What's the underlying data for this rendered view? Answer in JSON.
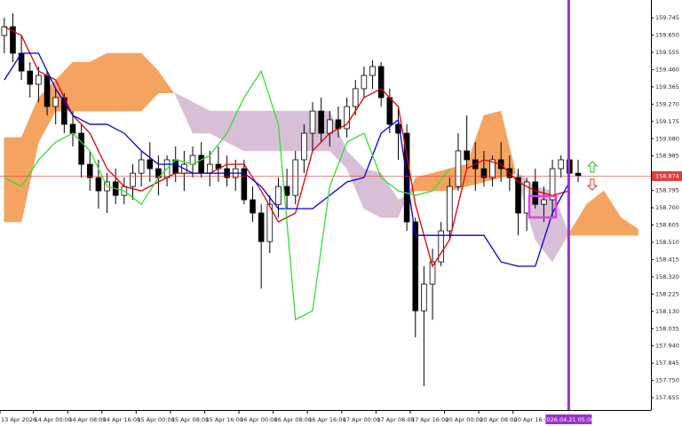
{
  "chart_data": {
    "type": "candlestick",
    "up_color": "#ffffff",
    "down_color": "#000000",
    "open": [
      159.648,
      159.696,
      159.55,
      159.452,
      159.379,
      159.428,
      159.257,
      159.306,
      159.159,
      159.11,
      158.939,
      158.866,
      158.793,
      158.842,
      158.768,
      158.817,
      158.89,
      158.964,
      158.915,
      158.866,
      158.964,
      158.89,
      158.939,
      158.988,
      158.89,
      158.939,
      158.915,
      158.866,
      158.915,
      158.744,
      158.671,
      158.514,
      158.719,
      158.817,
      158.768,
      158.964,
      159.11,
      159.232,
      159.11,
      159.184,
      159.135,
      159.257,
      159.355,
      159.428,
      159.477,
      159.306,
      159.159,
      159.11,
      158.622,
      158.133,
      158.28,
      158.402,
      158.573,
      158.817,
      159.013,
      158.964,
      158.915,
      158.866,
      158.964,
      158.915,
      158.866,
      158.671,
      158.842,
      158.719,
      158.744,
      158.915,
      158.964,
      158.89
    ],
    "high": [
      159.745,
      159.77,
      159.648,
      159.501,
      159.477,
      159.452,
      159.355,
      159.33,
      159.232,
      159.159,
      159.013,
      158.964,
      158.89,
      158.915,
      158.866,
      158.939,
      159.013,
      159.061,
      158.988,
      158.988,
      159.037,
      159.013,
      159.037,
      159.061,
      159.013,
      159.037,
      158.988,
      158.964,
      158.964,
      158.817,
      158.719,
      158.768,
      158.866,
      158.915,
      159.013,
      159.159,
      159.281,
      159.306,
      159.232,
      159.257,
      159.306,
      159.403,
      159.477,
      159.511,
      159.501,
      159.355,
      159.257,
      159.159,
      158.646,
      158.378,
      158.475,
      158.622,
      158.866,
      159.11,
      159.208,
      159.061,
      159.013,
      158.988,
      159.061,
      158.988,
      158.915,
      158.866,
      158.915,
      158.817,
      158.964,
      158.988,
      158.988,
      158.964
    ],
    "low": [
      159.55,
      159.501,
      159.403,
      159.306,
      159.281,
      159.208,
      159.159,
      159.11,
      159.037,
      158.866,
      158.793,
      158.695,
      158.671,
      158.719,
      158.719,
      158.744,
      158.817,
      158.842,
      158.768,
      158.817,
      158.842,
      158.793,
      158.866,
      158.866,
      158.817,
      158.842,
      158.817,
      158.793,
      158.719,
      158.622,
      158.255,
      158.451,
      158.646,
      158.695,
      158.719,
      158.89,
      159.013,
      159.061,
      159.037,
      159.086,
      159.086,
      159.208,
      159.306,
      159.355,
      159.257,
      159.11,
      158.964,
      158.573,
      157.987,
      157.718,
      158.084,
      158.378,
      158.524,
      158.793,
      158.915,
      158.793,
      158.817,
      158.817,
      158.842,
      158.793,
      158.548,
      158.573,
      158.695,
      158.622,
      158.646,
      158.866,
      158.866,
      158.842
    ],
    "close": [
      159.696,
      159.55,
      159.452,
      159.379,
      159.428,
      159.257,
      159.306,
      159.159,
      159.11,
      158.939,
      158.866,
      158.793,
      158.842,
      158.768,
      158.817,
      158.89,
      158.964,
      158.915,
      158.866,
      158.964,
      158.89,
      158.939,
      158.988,
      158.89,
      158.939,
      158.915,
      158.866,
      158.915,
      158.744,
      158.671,
      158.514,
      158.719,
      158.817,
      158.768,
      158.964,
      159.11,
      159.232,
      159.11,
      159.184,
      159.135,
      159.257,
      159.355,
      159.428,
      159.477,
      159.306,
      159.159,
      159.11,
      158.622,
      158.133,
      158.28,
      158.402,
      158.573,
      158.817,
      159.013,
      158.964,
      158.915,
      158.866,
      158.964,
      158.915,
      158.866,
      158.671,
      158.842,
      158.719,
      158.744,
      158.915,
      158.964,
      158.89,
      158.876
    ],
    "lines": [
      {
        "color": "#e00000",
        "x": [
          0,
          2,
          4,
          6,
          8,
          10,
          12,
          14,
          16,
          18,
          20,
          22,
          24,
          26,
          28,
          30,
          32,
          34,
          36,
          38,
          40,
          42,
          44,
          46,
          48,
          50,
          52,
          54,
          56,
          58,
          60,
          62,
          64,
          66
        ],
        "values": [
          159.696,
          159.648,
          159.452,
          159.403,
          159.208,
          159.11,
          158.915,
          158.817,
          158.793,
          158.842,
          158.89,
          158.89,
          158.89,
          158.939,
          158.939,
          158.793,
          158.622,
          158.671,
          159.013,
          159.11,
          159.159,
          159.306,
          159.355,
          159.257,
          158.719,
          158.378,
          158.524,
          158.915,
          158.964,
          158.939,
          158.842,
          158.793,
          158.768,
          158.793
        ]
      },
      {
        "color": "#0000dd",
        "x": [
          0,
          2,
          4,
          6,
          8,
          10,
          12,
          14,
          16,
          18,
          20,
          22,
          24,
          26,
          28,
          30,
          32,
          34,
          36,
          38,
          40,
          42,
          44,
          46,
          48,
          50,
          52,
          54,
          56,
          58,
          60,
          62,
          64,
          66
        ],
        "values": [
          159.403,
          159.55,
          159.55,
          159.355,
          159.208,
          159.159,
          159.159,
          159.11,
          159.013,
          158.939,
          158.939,
          158.89,
          158.89,
          158.89,
          158.89,
          158.817,
          158.695,
          158.695,
          158.695,
          158.768,
          158.842,
          158.866,
          159.11,
          159.184,
          158.548,
          158.548,
          158.548,
          158.548,
          158.548,
          158.402,
          158.378,
          158.378,
          158.671,
          158.842
        ]
      },
      {
        "color": "#33dd33",
        "x": [
          0,
          2,
          4,
          6,
          8,
          10,
          12,
          14,
          16,
          18,
          20,
          22,
          24,
          26,
          28,
          30,
          32,
          34,
          36,
          38,
          40,
          42,
          44,
          46,
          48,
          50,
          52
        ],
        "values": [
          158.866,
          158.817,
          158.964,
          159.061,
          159.11,
          159.013,
          158.817,
          158.793,
          158.719,
          158.866,
          158.964,
          158.939,
          158.988,
          159.11,
          159.306,
          159.452,
          159.159,
          158.084,
          158.133,
          158.817,
          159.061,
          159.11,
          158.866,
          158.793,
          158.768,
          158.793,
          158.915
        ]
      }
    ],
    "cloud": {
      "up_color": "#f4a460",
      "down_color": "#d8bfd8",
      "x": [
        0,
        2,
        4,
        6,
        8,
        10,
        12,
        14,
        16,
        18,
        20,
        22,
        24,
        26,
        28,
        30,
        32,
        34,
        36,
        38,
        40,
        42,
        44,
        46,
        48,
        50,
        52,
        54,
        56,
        58,
        60,
        62,
        64,
        66,
        68,
        70,
        72,
        74
      ],
      "a": [
        159.086,
        159.086,
        159.306,
        159.403,
        159.501,
        159.501,
        159.55,
        159.55,
        159.55,
        159.452,
        159.32,
        159.11,
        159.11,
        159.061,
        159.013,
        159.013,
        159.013,
        159.013,
        159.013,
        159.013,
        158.915,
        158.695,
        158.646,
        158.646,
        158.866,
        158.89,
        158.915,
        158.939,
        159.208,
        159.232,
        158.842,
        158.524,
        158.402,
        158.563,
        158.719,
        158.793,
        158.646,
        158.583
      ],
      "b": [
        158.622,
        158.622,
        159.061,
        159.232,
        159.232,
        159.232,
        159.232,
        159.232,
        159.232,
        159.33,
        159.33,
        159.281,
        159.232,
        159.232,
        159.232,
        159.232,
        159.232,
        159.232,
        159.232,
        159.232,
        159.013,
        158.915,
        158.89,
        158.744,
        158.793,
        158.793,
        158.793,
        158.817,
        158.842,
        158.866,
        158.89,
        158.817,
        158.793,
        158.548,
        158.548,
        158.548,
        158.548,
        158.548
      ]
    },
    "bid": {
      "value": 158.874,
      "color": "#e03c3c"
    },
    "vline": {
      "x": 65.9,
      "label": "2026.04.21 05:00",
      "color": "#9933cc"
    },
    "xlim": [
      -0.5,
      75.5
    ],
    "ylim": [
      157.587,
      159.843
    ],
    "yticks": [
      159.745,
      {
        "value": 159.65,
        "label": "159.650"
      },
      159.555,
      {
        "value": 159.46,
        "label": "159.460"
      },
      159.365,
      {
        "value": 159.27,
        "label": "159.270"
      },
      159.175,
      {
        "value": 159.08,
        "label": "159.080"
      },
      158.985,
      158.795,
      {
        "value": 158.7,
        "label": "158.700"
      },
      158.605,
      {
        "value": 158.51,
        "label": "158.510"
      },
      158.415,
      {
        "value": 158.32,
        "label": "158.320"
      },
      158.225,
      {
        "value": 158.13,
        "label": "158.130"
      },
      158.035,
      {
        "value": 157.94,
        "label": "157.940"
      },
      157.845,
      {
        "value": 157.75,
        "label": "157.750"
      },
      157.655
    ],
    "xticks": [
      {
        "value": -0.5,
        "label": "13 Apr 2026"
      },
      {
        "value": 3.4,
        "label": "14 Apr 00:00"
      },
      {
        "value": 7.4,
        "label": "14 Apr 08:00"
      },
      {
        "value": 11.4,
        "label": "14 Apr 16:00"
      },
      {
        "value": 15.4,
        "label": "15 Apr 00:00"
      },
      {
        "value": 19.4,
        "label": "15 Apr 08:00"
      },
      {
        "value": 23.4,
        "label": "15 Apr 16:00"
      },
      {
        "value": 27.4,
        "label": "16 Apr 00:00"
      },
      {
        "value": 31.4,
        "label": "16 Apr 08:00"
      },
      {
        "value": 35.4,
        "label": "16 Apr 16:00"
      },
      {
        "value": 39.4,
        "label": "17 Apr 00:00"
      },
      {
        "value": 43.4,
        "label": "17 Apr 08:00"
      },
      {
        "value": 47.4,
        "label": "17 Apr 16:00"
      },
      {
        "value": 51.4,
        "label": "20 Apr 00:00"
      },
      {
        "value": 55.4,
        "label": "20 Apr 08:00"
      },
      {
        "value": 59.4,
        "label": "20 Apr 16:00"
      }
    ]
  }
}
